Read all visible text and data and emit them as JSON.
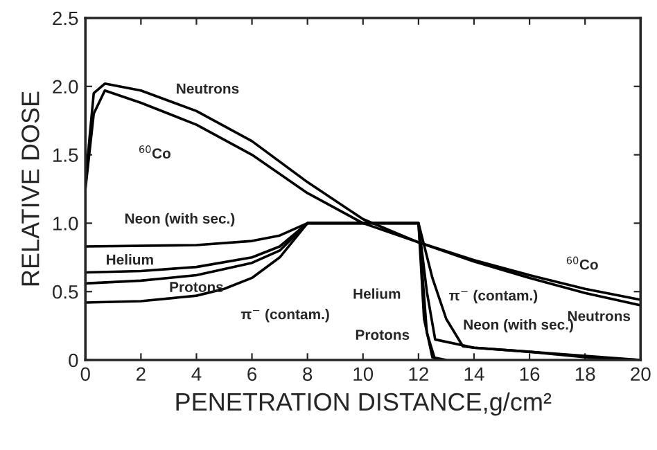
{
  "chart_data": {
    "type": "line",
    "xlabel": "PENETRATION DISTANCE,g/cm²",
    "ylabel": "RELATIVE DOSE",
    "xlim": [
      0,
      20
    ],
    "ylim": [
      0,
      2.5
    ],
    "xticks": [
      0,
      2,
      4,
      6,
      8,
      10,
      12,
      14,
      16,
      18,
      20
    ],
    "yticks": [
      {
        "value": 0,
        "label": "0"
      },
      {
        "value": 0.5,
        "label": "0.5"
      },
      {
        "value": 1.0,
        "label": "1.0"
      },
      {
        "value": 1.5,
        "label": "1.5"
      },
      {
        "value": 2.0,
        "label": "2.0"
      },
      {
        "value": 2.5,
        "label": "2.5"
      }
    ],
    "grid": false,
    "marker": "none",
    "line_style": "solid",
    "series": [
      {
        "color": "#000000",
        "x": [
          0,
          0.3,
          0.7,
          2,
          4,
          6,
          8,
          10,
          12,
          14,
          16,
          18,
          20
        ],
        "values": [
          1.3,
          1.95,
          2.02,
          1.97,
          1.82,
          1.6,
          1.3,
          1.03,
          0.86,
          0.72,
          0.6,
          0.49,
          0.4
        ]
      },
      {
        "color": "#000000",
        "x": [
          0,
          0.3,
          0.7,
          2,
          4,
          6,
          8,
          10,
          12,
          14,
          16,
          18,
          20
        ],
        "values": [
          1.25,
          1.8,
          1.97,
          1.88,
          1.72,
          1.5,
          1.22,
          1.0,
          0.86,
          0.73,
          0.62,
          0.52,
          0.44
        ]
      },
      {
        "color": "#000000",
        "x": [
          0,
          4,
          6,
          7,
          8,
          12,
          12.3,
          12.6,
          14,
          16,
          18,
          20
        ],
        "values": [
          0.83,
          0.84,
          0.87,
          0.91,
          1.0,
          1.0,
          0.5,
          0.15,
          0.09,
          0.06,
          0.03,
          0.0
        ]
      },
      {
        "color": "#000000",
        "x": [
          0,
          2,
          4,
          6,
          7,
          8,
          12,
          12.2,
          12.5,
          13
        ],
        "values": [
          0.64,
          0.65,
          0.68,
          0.75,
          0.83,
          1.0,
          1.0,
          0.3,
          0.02,
          0.0
        ]
      },
      {
        "color": "#000000",
        "x": [
          0,
          2,
          4,
          6,
          7,
          8,
          12,
          12.3,
          12.6
        ],
        "values": [
          0.56,
          0.58,
          0.62,
          0.71,
          0.8,
          1.0,
          1.0,
          0.2,
          0.0
        ]
      },
      {
        "color": "#000000",
        "x": [
          0,
          2,
          4,
          5,
          6,
          7,
          8,
          12,
          12.5,
          13,
          13.6,
          14,
          16,
          18,
          20
        ],
        "values": [
          0.42,
          0.43,
          0.47,
          0.52,
          0.6,
          0.75,
          1.0,
          1.0,
          0.6,
          0.3,
          0.1,
          0.09,
          0.06,
          0.02,
          0.0
        ]
      }
    ],
    "annotations": [
      "Neutrons",
      "$^{60}$Co",
      "Neon (with sec.)",
      "Helium",
      "Protons",
      "π$^{−}$ (contam.)",
      "$^{60}$Co",
      "Neutrons",
      "Helium",
      "π$^{−}$ (contam.)",
      "Neon (with sec.)",
      "Protons"
    ]
  }
}
